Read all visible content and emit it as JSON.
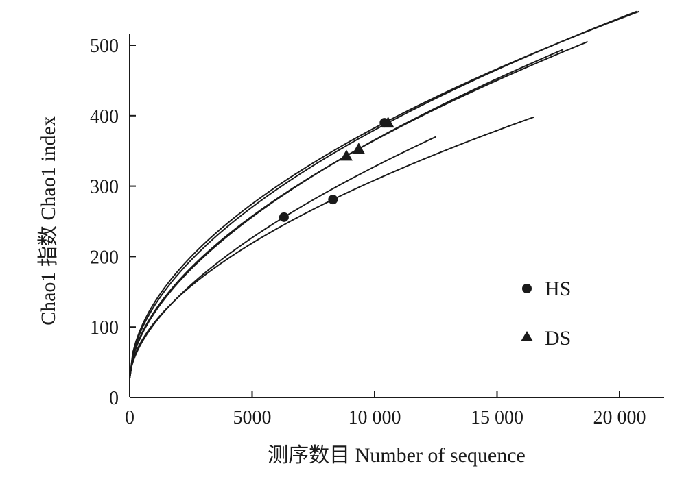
{
  "chart_data": {
    "type": "line",
    "xlabel": "测序数目 Number of sequence",
    "ylabel": "Chao1 指数 Chao1 index",
    "xlim": [
      0,
      22000
    ],
    "ylim": [
      0,
      500
    ],
    "x_ticks": [
      0,
      5000,
      10000,
      15000,
      20000
    ],
    "x_tick_labels": [
      "0",
      "5000",
      "10 000",
      "15 000",
      "20 000"
    ],
    "y_ticks": [
      0,
      100,
      200,
      300,
      400,
      500
    ],
    "y_tick_labels": [
      "0",
      "100",
      "200",
      "300",
      "400",
      "500"
    ],
    "grid": false,
    "legend": {
      "position": "right",
      "entries": [
        {
          "label": "HS",
          "marker": "circle"
        },
        {
          "label": "DS",
          "marker": "triangle"
        }
      ]
    },
    "series": [
      {
        "group": "HS",
        "marker": "circle",
        "start": [
          0,
          27
        ],
        "end": [
          16500,
          398
        ],
        "marker_point": [
          8300,
          281
        ]
      },
      {
        "group": "HS",
        "marker": "circle",
        "start": [
          0,
          27
        ],
        "end": [
          12500,
          370
        ],
        "marker_point": [
          6300,
          256
        ]
      },
      {
        "group": "HS",
        "marker": "circle",
        "start": [
          0,
          27
        ],
        "end": [
          20800,
          548
        ],
        "marker_point": [
          10400,
          390
        ]
      },
      {
        "group": "DS",
        "marker": "triangle",
        "start": [
          0,
          27
        ],
        "end": [
          20700,
          548
        ],
        "marker_point": [
          10550,
          390
        ]
      },
      {
        "group": "DS",
        "marker": "triangle",
        "start": [
          0,
          27
        ],
        "end": [
          17700,
          494
        ],
        "marker_point": [
          9350,
          353
        ]
      },
      {
        "group": "DS",
        "marker": "triangle",
        "start": [
          0,
          27
        ],
        "end": [
          18700,
          505
        ],
        "marker_point": [
          8850,
          343
        ]
      }
    ]
  }
}
